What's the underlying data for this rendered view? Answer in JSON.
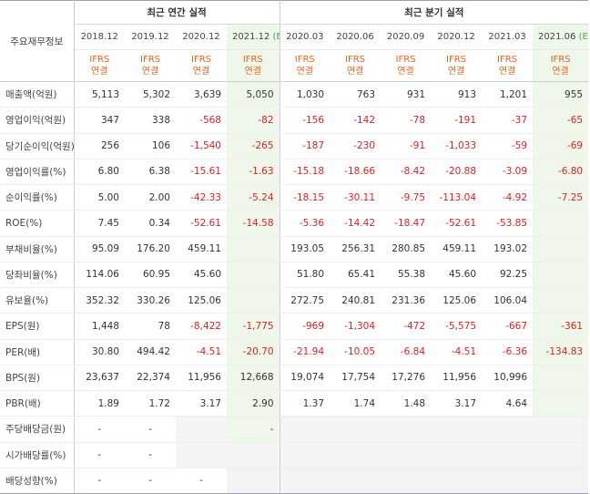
{
  "header": {
    "corner_label": "주요재무정보",
    "annual_group": "최근 연간 실적",
    "quarter_group": "최근 분기 실적",
    "annual_periods": [
      "2018.12",
      "2019.12",
      "2020.12",
      "2021.12"
    ],
    "annual_estimate_suffix": "(E)",
    "quarter_periods": [
      "2020.03",
      "2020.06",
      "2020.09",
      "2020.12",
      "2021.03",
      "2021.06"
    ],
    "quarter_estimate_suffix": "(E)",
    "ifrs_line1": "IFRS",
    "ifrs_line2": "연결"
  },
  "rows": [
    {
      "label": "매출액(억원)",
      "annual": [
        "5,113",
        "5,302",
        "3,639",
        "5,050"
      ],
      "quarter": [
        "1,030",
        "763",
        "931",
        "913",
        "1,201",
        "955"
      ]
    },
    {
      "label": "영업이익(억원)",
      "annual": [
        "347",
        "338",
        "-568",
        "-82"
      ],
      "quarter": [
        "-156",
        "-142",
        "-78",
        "-191",
        "-37",
        "-65"
      ]
    },
    {
      "label": "당기순이익(억원)",
      "annual": [
        "256",
        "106",
        "-1,540",
        "-265"
      ],
      "quarter": [
        "-187",
        "-230",
        "-91",
        "-1,033",
        "-59",
        "-69"
      ]
    },
    {
      "label": "영업이익률(%)",
      "annual": [
        "6.80",
        "6.38",
        "-15.61",
        "-1.63"
      ],
      "quarter": [
        "-15.18",
        "-18.66",
        "-8.42",
        "-20.88",
        "-3.09",
        "-6.80"
      ]
    },
    {
      "label": "순이익률(%)",
      "annual": [
        "5.00",
        "2.00",
        "-42.33",
        "-5.24"
      ],
      "quarter": [
        "-18.15",
        "-30.11",
        "-9.75",
        "-113.04",
        "-4.92",
        "-7.25"
      ]
    },
    {
      "label": "ROE(%)",
      "annual": [
        "7.45",
        "0.34",
        "-52.61",
        "-14.58"
      ],
      "quarter": [
        "-5.36",
        "-14.42",
        "-18.47",
        "-52.61",
        "-53.85",
        ""
      ]
    },
    {
      "label": "부채비율(%)",
      "annual": [
        "95.09",
        "176.20",
        "459.11",
        ""
      ],
      "quarter": [
        "193.05",
        "256.31",
        "280.85",
        "459.11",
        "193.02",
        ""
      ]
    },
    {
      "label": "당좌비율(%)",
      "annual": [
        "114.06",
        "60.95",
        "45.60",
        ""
      ],
      "quarter": [
        "51.80",
        "65.41",
        "55.38",
        "45.60",
        "92.25",
        ""
      ]
    },
    {
      "label": "유보율(%)",
      "annual": [
        "352.32",
        "330.26",
        "125.06",
        ""
      ],
      "quarter": [
        "272.75",
        "240.81",
        "231.36",
        "125.06",
        "106.04",
        ""
      ]
    },
    {
      "label": "EPS(원)",
      "annual": [
        "1,448",
        "78",
        "-8,422",
        "-1,775"
      ],
      "quarter": [
        "-969",
        "-1,304",
        "-472",
        "-5,575",
        "-667",
        "-361"
      ]
    },
    {
      "label": "PER(배)",
      "annual": [
        "30.80",
        "494.42",
        "-4.51",
        "-20.70"
      ],
      "quarter": [
        "-21.94",
        "-10.05",
        "-6.84",
        "-4.51",
        "-6.36",
        "-134.83"
      ]
    },
    {
      "label": "BPS(원)",
      "annual": [
        "23,637",
        "22,374",
        "11,956",
        "12,668"
      ],
      "quarter": [
        "19,074",
        "17,754",
        "17,276",
        "11,956",
        "10,996",
        ""
      ]
    },
    {
      "label": "PBR(배)",
      "annual": [
        "1.89",
        "1.72",
        "3.17",
        "2.90"
      ],
      "quarter": [
        "1.37",
        "1.74",
        "1.48",
        "3.17",
        "4.64",
        ""
      ]
    },
    {
      "label": "주당배당금(원)",
      "annual": [
        "-",
        "-",
        "",
        "-"
      ],
      "quarter": [
        "",
        "",
        "",
        "",
        "",
        ""
      ]
    },
    {
      "label": "시가배당률(%)",
      "annual": [
        "-",
        "-",
        "",
        ""
      ],
      "quarter": [
        "",
        "",
        "",
        "",
        "",
        ""
      ]
    },
    {
      "label": "배당성향(%)",
      "annual": [
        "-",
        "-",
        "-",
        ""
      ],
      "quarter": [
        "",
        "",
        "",
        "",
        "",
        ""
      ]
    }
  ],
  "colors": {
    "negative": "#e02020",
    "ifrs": "#e8641e",
    "estimate_bg": "#eef7ea",
    "estimate_label": "#55a049",
    "blank_bg": "#f4f4f4"
  }
}
